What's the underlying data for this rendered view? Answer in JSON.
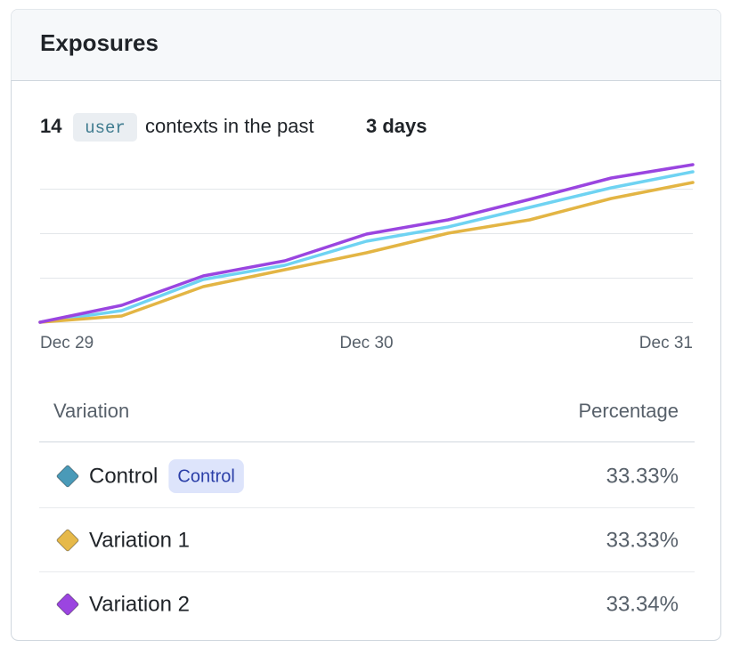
{
  "header": {
    "title": "Exposures"
  },
  "summary": {
    "count": "14",
    "context": "user",
    "text": "contexts in the past",
    "duration": "3 days"
  },
  "chart_data": {
    "type": "line",
    "categories": [
      "Dec 29",
      null,
      null,
      null,
      "Dec 30",
      null,
      null,
      null,
      "Dec 31"
    ],
    "series": [
      {
        "color": "#6fd3f2",
        "values": [
          0,
          0.26,
          0.96,
          1.28,
          1.82,
          2.14,
          2.58,
          3.02,
          3.38
        ]
      },
      {
        "color": "#e3b544",
        "values": [
          0,
          0.14,
          0.8,
          1.18,
          1.56,
          2.0,
          2.3,
          2.78,
          3.14
        ]
      },
      {
        "color": "#9a45e0",
        "values": [
          0,
          0.38,
          1.04,
          1.38,
          1.98,
          2.3,
          2.76,
          3.24,
          3.54
        ]
      }
    ],
    "ylim": [
      0,
      3.6
    ],
    "yticks": [
      0,
      1,
      2,
      3
    ],
    "grid": true
  },
  "table": {
    "headers": [
      "Variation",
      "Percentage"
    ],
    "rows": [
      {
        "name": "Control",
        "badge": "Control",
        "color": "#4a9ab8",
        "percentage": "33.33%"
      },
      {
        "name": "Variation 1",
        "color": "#e6b94a",
        "percentage": "33.33%"
      },
      {
        "name": "Variation 2",
        "color": "#9b45e0",
        "percentage": "33.34%"
      }
    ]
  }
}
